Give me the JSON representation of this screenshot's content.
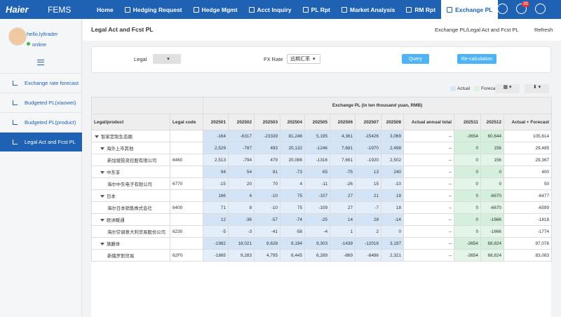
{
  "nav": {
    "logo": "Haier",
    "app": "FEMS",
    "items": [
      "Home",
      "Hedging Request",
      "Hedge Mgmt",
      "Acct Inquiry",
      "PL Rpt",
      "Market Analysis",
      "RM Rpt",
      "Exchange PL"
    ],
    "badge": "39"
  },
  "sidebar": {
    "user": "hello,lyltrader",
    "status": "online",
    "items": [
      "Exchange rate forecast",
      "Budgeted PL(xiaowei)",
      "Budgeted PL(product)",
      "Legal Act and Fcst PL"
    ]
  },
  "header": {
    "title": "Legal Act and Fcst PL",
    "breadcrumb": "Exchange PL/Legal Act and Fcst PL",
    "refresh": "Refresh"
  },
  "filters": {
    "legal_label": "Legal",
    "fx_label": "FX Rate",
    "fx_value": "远期汇率",
    "query": "Query",
    "recalc": "Re-calculation"
  },
  "legend": [
    "Actual",
    "Forecast"
  ],
  "table": {
    "group_header": "Exchange PL (in ten thousand yuan, RMB)",
    "columns": [
      "Legal/product",
      "Legal code",
      "202501",
      "202502",
      "202503",
      "202504",
      "202505",
      "202506",
      "202507",
      "202508",
      "Actual annual total",
      "202511",
      "202512",
      "Actual + Forecast"
    ],
    "rows": [
      {
        "name": "智家定制生态圈",
        "code": null,
        "values": [
          "-164",
          "-6317",
          "-23339",
          "81,246",
          "5,195",
          "4,361",
          "-15426",
          "3,069",
          "--",
          "-3654",
          "60,644",
          "105,614"
        ]
      },
      {
        "name": "海外上市其他",
        "code": null,
        "values": [
          "2,529",
          "-787",
          "493",
          "20,132",
          "-1246",
          "7,681",
          "-1970",
          "2,498",
          "--",
          "0",
          "156",
          "29,485"
        ]
      },
      {
        "name": "新加坡投资控股有限公司",
        "code": "6460",
        "values": [
          "2,513",
          "-794",
          "479",
          "20,086",
          "-1316",
          "7,661",
          "-1920",
          "2,502",
          "--",
          "0",
          "156",
          "29,367"
        ]
      },
      {
        "name": "中东非",
        "code": null,
        "values": [
          "94",
          "54",
          "81",
          "-73",
          "65",
          "-75",
          "13",
          "240",
          "--",
          "0",
          "0",
          "400"
        ]
      },
      {
        "name": "海尔中东电子有限公司",
        "code": "6770",
        "values": [
          "-15",
          "20",
          "70",
          "4",
          "-11",
          "-26",
          "15",
          "-10",
          "--",
          "0",
          "0",
          "50"
        ]
      },
      {
        "name": "日本",
        "code": null,
        "values": [
          "166",
          "4",
          "-10",
          "75",
          "-107",
          "27",
          "21",
          "18",
          "--",
          "0",
          "-6670",
          "-6477"
        ]
      },
      {
        "name": "海尔日本销售株式会社",
        "code": "6400",
        "values": [
          "71",
          "8",
          "-10",
          "75",
          "-109",
          "27",
          "-7",
          "18",
          "--",
          "0",
          "-6670",
          "-6599"
        ]
      },
      {
        "name": "欧洲暖通",
        "code": null,
        "values": [
          "12",
          "-36",
          "-57",
          "-74",
          "-25",
          "14",
          "28",
          "-14",
          "--",
          "0",
          "-1666",
          "-1818"
        ]
      },
      {
        "name": "海尔空调意大利贸易股份公司",
        "code": "6230",
        "values": [
          "-5",
          "-3",
          "-41",
          "-58",
          "-4",
          "1",
          "2",
          "0",
          "--",
          "0",
          "-1666",
          "-1774"
        ]
      },
      {
        "name": "施爵体",
        "code": null,
        "values": [
          "-1982",
          "18,021",
          "8,628",
          "8,194",
          "9,303",
          "-1439",
          "-12016",
          "3,197",
          "--",
          "-3654",
          "68,824",
          "97,076"
        ]
      },
      {
        "name": "新俄罗斯贸易",
        "code": "62F0",
        "values": [
          "-1865",
          "9,283",
          "4,795",
          "6,445",
          "6,289",
          "-869",
          "-8486",
          "2,321",
          "--",
          "-3654",
          "68,824",
          "83,083"
        ]
      }
    ]
  }
}
